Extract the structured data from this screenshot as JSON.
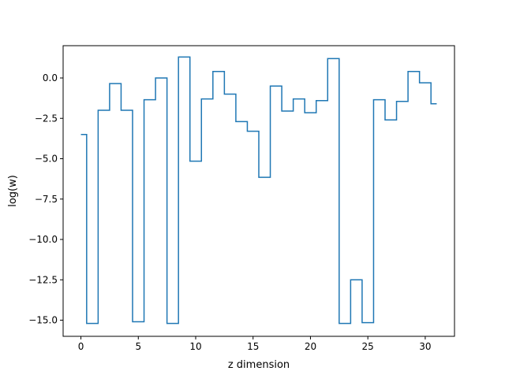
{
  "chart_data": {
    "type": "line",
    "drawstyle": "steps-mid",
    "xlabel": "z dimension",
    "ylabel": "log(w)",
    "xlim": [
      -1.55,
      32.55
    ],
    "ylim": [
      -16.0,
      2.0
    ],
    "xticks": [
      0,
      5,
      10,
      15,
      20,
      25,
      30
    ],
    "xtick_labels": [
      "0",
      "5",
      "10",
      "15",
      "20",
      "25",
      "30"
    ],
    "yticks": [
      0.0,
      -2.5,
      -5.0,
      -7.5,
      -10.0,
      -12.5,
      -15.0
    ],
    "ytick_labels": [
      "0.0",
      "−2.5",
      "−5.0",
      "−7.5",
      "−10.0",
      "−12.5",
      "−15.0"
    ],
    "grid": false,
    "legend": false,
    "line_color": "#1f77b4",
    "x": [
      0,
      1,
      2,
      3,
      4,
      5,
      6,
      7,
      8,
      9,
      10,
      11,
      12,
      13,
      14,
      15,
      16,
      17,
      18,
      19,
      20,
      21,
      22,
      23,
      24,
      25,
      26,
      27,
      28,
      29,
      30,
      31
    ],
    "y": [
      -3.5,
      -15.2,
      -2.0,
      -0.35,
      -2.0,
      -15.1,
      -1.35,
      0.0,
      -15.2,
      1.3,
      -5.15,
      -1.3,
      0.4,
      -1.0,
      -2.7,
      -3.3,
      -6.15,
      -0.5,
      -2.05,
      -1.3,
      -2.15,
      -1.4,
      1.2,
      -15.2,
      -12.5,
      -15.15,
      -1.35,
      -2.6,
      -1.45,
      0.4,
      -0.3,
      -1.6
    ]
  }
}
